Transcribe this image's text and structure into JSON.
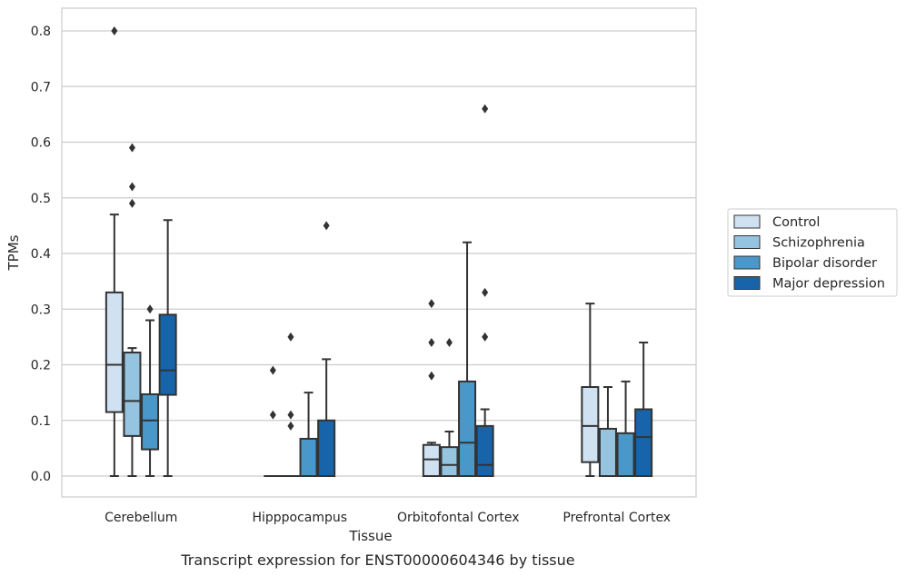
{
  "chart_data": {
    "type": "box",
    "caption": "Transcript expression for ENST00000604346 by tissue",
    "xlabel": "Tissue",
    "ylabel": "TPMs",
    "ylim": [
      -0.04,
      0.84
    ],
    "yticks": [
      0.0,
      0.1,
      0.2,
      0.3,
      0.4,
      0.5,
      0.6,
      0.7,
      0.8
    ],
    "ytick_labels": [
      "0.0",
      "0.1",
      "0.2",
      "0.3",
      "0.4",
      "0.5",
      "0.6",
      "0.7",
      "0.8"
    ],
    "categories": [
      "Cerebellum",
      "Hipppocampus",
      "Orbitofontal Cortex",
      "Prefrontal Cortex"
    ],
    "grid": "horizontal",
    "legend_placement": "right",
    "series": [
      {
        "name": "Control",
        "color": "#d0e1f2",
        "boxes": [
          {
            "whisker_low": 0.0,
            "q1": 0.115,
            "median": 0.2,
            "q3": 0.33,
            "whisker_high": 0.47,
            "outliers": [
              0.8
            ]
          },
          {
            "whisker_low": 0.0,
            "q1": 0.0,
            "median": 0.0,
            "q3": 0.0,
            "whisker_high": 0.0,
            "outliers": [
              0.19,
              0.11
            ]
          },
          {
            "whisker_low": 0.0,
            "q1": 0.0,
            "median": 0.03,
            "q3": 0.056,
            "whisker_high": 0.06,
            "outliers": [
              0.31,
              0.24,
              0.18
            ]
          },
          {
            "whisker_low": 0.0,
            "q1": 0.025,
            "median": 0.09,
            "q3": 0.16,
            "whisker_high": 0.31,
            "outliers": []
          }
        ]
      },
      {
        "name": "Schizophrenia",
        "color": "#94c4df",
        "boxes": [
          {
            "whisker_low": 0.0,
            "q1": 0.072,
            "median": 0.135,
            "q3": 0.222,
            "whisker_high": 0.23,
            "outliers": [
              0.59,
              0.52,
              0.49
            ]
          },
          {
            "whisker_low": 0.0,
            "q1": 0.0,
            "median": 0.0,
            "q3": 0.0,
            "whisker_high": 0.0,
            "outliers": [
              0.25,
              0.11,
              0.09
            ]
          },
          {
            "whisker_low": 0.0,
            "q1": 0.0,
            "median": 0.02,
            "q3": 0.052,
            "whisker_high": 0.08,
            "outliers": [
              0.24
            ]
          },
          {
            "whisker_low": 0.0,
            "q1": 0.0,
            "median": 0.0,
            "q3": 0.085,
            "whisker_high": 0.16,
            "outliers": []
          }
        ]
      },
      {
        "name": "Bipolar disorder",
        "color": "#4a98c9",
        "boxes": [
          {
            "whisker_low": 0.0,
            "q1": 0.048,
            "median": 0.1,
            "q3": 0.147,
            "whisker_high": 0.28,
            "outliers": [
              0.3
            ]
          },
          {
            "whisker_low": 0.0,
            "q1": 0.0,
            "median": 0.0,
            "q3": 0.067,
            "whisker_high": 0.15,
            "outliers": []
          },
          {
            "whisker_low": 0.0,
            "q1": 0.0,
            "median": 0.06,
            "q3": 0.17,
            "whisker_high": 0.42,
            "outliers": []
          },
          {
            "whisker_low": 0.0,
            "q1": 0.0,
            "median": 0.0,
            "q3": 0.077,
            "whisker_high": 0.17,
            "outliers": []
          }
        ]
      },
      {
        "name": "Major depression",
        "color": "#1764ab",
        "boxes": [
          {
            "whisker_low": 0.0,
            "q1": 0.146,
            "median": 0.19,
            "q3": 0.29,
            "whisker_high": 0.46,
            "outliers": []
          },
          {
            "whisker_low": 0.0,
            "q1": 0.0,
            "median": 0.0,
            "q3": 0.1,
            "whisker_high": 0.21,
            "outliers": [
              0.45
            ]
          },
          {
            "whisker_low": 0.0,
            "q1": 0.0,
            "median": 0.02,
            "q3": 0.09,
            "whisker_high": 0.12,
            "outliers": [
              0.66,
              0.33,
              0.25
            ]
          },
          {
            "whisker_low": 0.0,
            "q1": 0.0,
            "median": 0.07,
            "q3": 0.12,
            "whisker_high": 0.24,
            "outliers": []
          }
        ]
      }
    ]
  }
}
